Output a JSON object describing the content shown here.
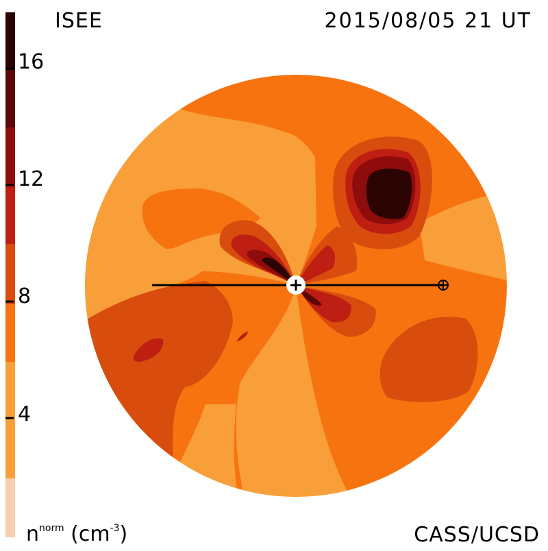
{
  "header": {
    "instrument": "ISEE",
    "timestamp": "2015/08/05 21 UT"
  },
  "footer": {
    "credit": "CASS/UCSD"
  },
  "colorbar": {
    "quantity": "n",
    "superscript": "norm",
    "unit": "(cm",
    "unit_exponent": "-3",
    "unit_close": ")",
    "ticks": [
      "16",
      "12",
      "8",
      "4"
    ],
    "tick_values": [
      16,
      12,
      8,
      4
    ],
    "range": [
      0,
      18
    ],
    "levels": [
      "#f7cfae",
      "#f99f3a",
      "#f77310",
      "#d84c0d",
      "#bf1e12",
      "#8e0c0c",
      "#5c0707",
      "#2b0303"
    ]
  },
  "map": {
    "colors": {
      "background_level": "#f77310",
      "light_level": "#f99f3a",
      "mid_level": "#d84c0d",
      "high_level": "#bf1e12",
      "very_high_level": "#8e0c0c",
      "peak_level": "#2b0303",
      "sun_marker": "#ffffff",
      "line": "#000000"
    },
    "icons": [
      "sun-marker-icon",
      "earth-symbol-icon"
    ]
  }
}
